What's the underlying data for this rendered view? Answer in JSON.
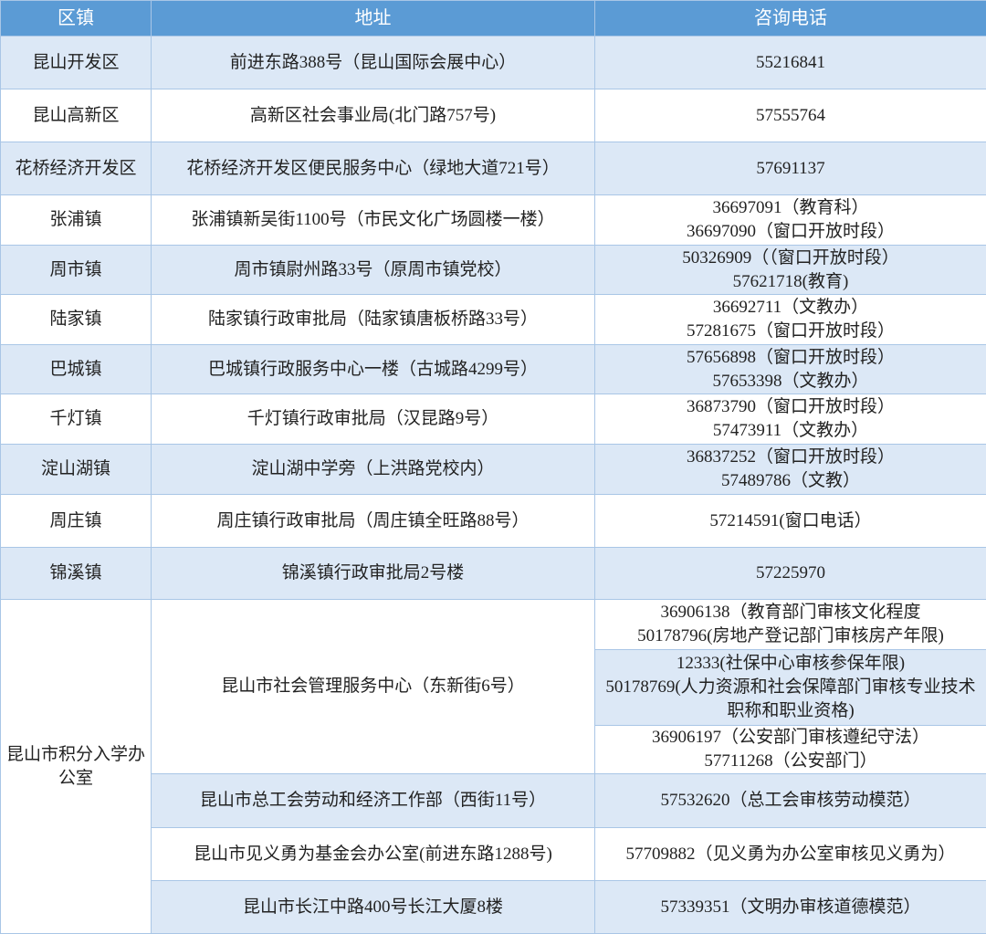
{
  "header": {
    "district": "区镇",
    "address": "地址",
    "phone": "咨询电话"
  },
  "rows": [
    {
      "district": "昆山开发区",
      "address": "前进东路388号（昆山国际会展中心）",
      "phones": [
        "55216841"
      ]
    },
    {
      "district": "昆山高新区",
      "address": "高新区社会事业局(北门路757号)",
      "phones": [
        "57555764"
      ]
    },
    {
      "district": "花桥经济开发区",
      "address": "花桥经济开发区便民服务中心（绿地大道721号）",
      "phones": [
        "57691137"
      ]
    },
    {
      "district": "张浦镇",
      "address": "张浦镇新吴街1100号（市民文化广场圆楼一楼）",
      "phones": [
        "36697091（教育科）",
        "36697090（窗口开放时段）"
      ]
    },
    {
      "district": "周市镇",
      "address": "周市镇尉州路33号（原周市镇党校）",
      "phones": [
        "50326909（（窗口开放时段）",
        "57621718(教育)"
      ]
    },
    {
      "district": "陆家镇",
      "address": "陆家镇行政审批局（陆家镇唐板桥路33号）",
      "phones": [
        "36692711（文教办）",
        "57281675（窗口开放时段）"
      ]
    },
    {
      "district": "巴城镇",
      "address": "巴城镇行政服务中心一楼（古城路4299号）",
      "phones": [
        "57656898（窗口开放时段）",
        "57653398（文教办）"
      ]
    },
    {
      "district": "千灯镇",
      "address": "千灯镇行政审批局（汉昆路9号）",
      "phones": [
        "36873790（窗口开放时段）",
        "57473911（文教办）"
      ]
    },
    {
      "district": "淀山湖镇",
      "address": "淀山湖中学旁（上洪路党校内）",
      "phones": [
        "36837252（窗口开放时段）",
        "57489786（文教）"
      ]
    },
    {
      "district": "周庄镇",
      "address": "周庄镇行政审批局（周庄镇全旺路88号）",
      "phones": [
        "57214591(窗口电话）"
      ]
    },
    {
      "district": "锦溪镇",
      "address": "锦溪镇行政审批局2号楼",
      "phones": [
        "57225970"
      ]
    }
  ],
  "group": {
    "district": "昆山市积分入学办公室",
    "entries": [
      {
        "address": "昆山市社会管理服务中心（东新街6号）",
        "phone_blocks": [
          [
            "36906138（教育部门审核文化程度",
            "50178796(房地产登记部门审核房产年限)"
          ],
          [
            "12333(社保中心审核参保年限)",
            "50178769(人力资源和社会保障部门审核专业技术职称和职业资格)"
          ],
          [
            "36906197（公安部门审核遵纪守法）",
            "57711268（公安部门）"
          ]
        ]
      },
      {
        "address": "昆山市总工会劳动和经济工作部（西街11号）",
        "phone": "57532620（总工会审核劳动模范）"
      },
      {
        "address": "昆山市见义勇为基金会办公室(前进东路1288号)",
        "phone": "57709882（见义勇为办公室审核见义勇为）"
      },
      {
        "address": "昆山市长江中路400号长江大厦8楼",
        "phone": "57339351（文明办审核道德模范）"
      }
    ]
  },
  "colors": {
    "header_bg": "#5b9bd5",
    "alt_row": "#dce8f6",
    "border": "#a9c6e6"
  }
}
